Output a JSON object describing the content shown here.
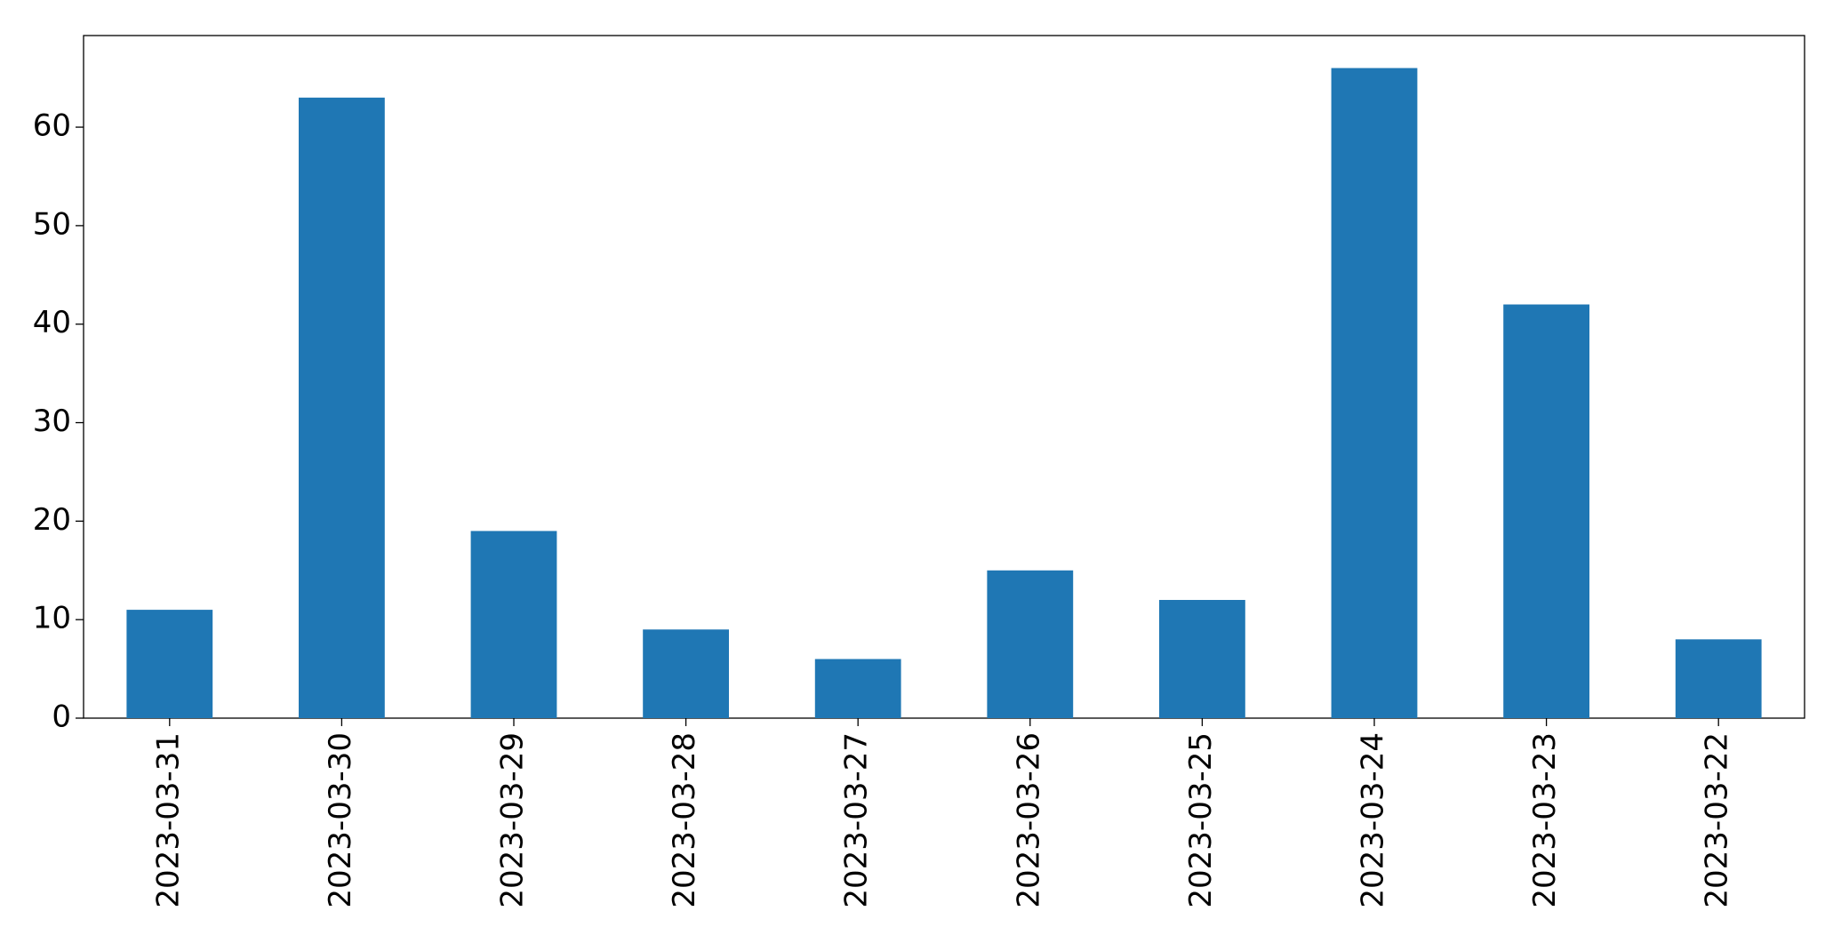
{
  "chart_data": {
    "type": "bar",
    "categories": [
      "2023-03-31",
      "2023-03-30",
      "2023-03-29",
      "2023-03-28",
      "2023-03-27",
      "2023-03-26",
      "2023-03-25",
      "2023-03-24",
      "2023-03-23",
      "2023-03-22"
    ],
    "values": [
      11,
      63,
      19,
      9,
      6,
      15,
      12,
      66,
      42,
      8
    ],
    "color": "#1f77b4",
    "ylim": [
      0,
      69.3
    ],
    "yticks": [
      0,
      10,
      20,
      30,
      40,
      50,
      60
    ],
    "grid": false
  }
}
